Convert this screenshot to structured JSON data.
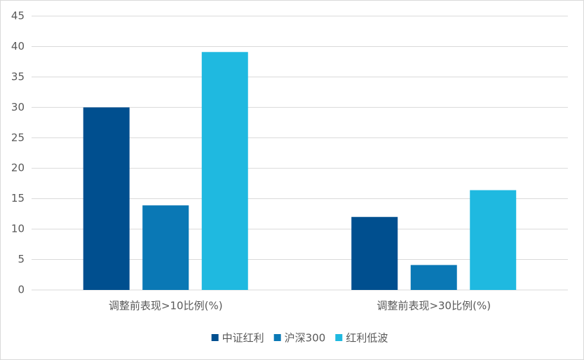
{
  "chart_data": {
    "type": "bar",
    "categories": [
      "调整前表现>10比例(%)",
      "调整前表现>30比例(%)"
    ],
    "series": [
      {
        "name": "中证红利",
        "color": "#004f8f",
        "values": [
          30,
          12
        ]
      },
      {
        "name": "沪深300",
        "color": "#0a78b5",
        "values": [
          13.9,
          4.1
        ]
      },
      {
        "name": "红利低波",
        "color": "#1fb9e0",
        "values": [
          39.1,
          16.4
        ]
      }
    ],
    "ylim": [
      0,
      45
    ],
    "yticks": [
      0,
      5,
      10,
      15,
      20,
      25,
      30,
      35,
      40,
      45
    ],
    "grid": true,
    "legend": "bottom"
  }
}
